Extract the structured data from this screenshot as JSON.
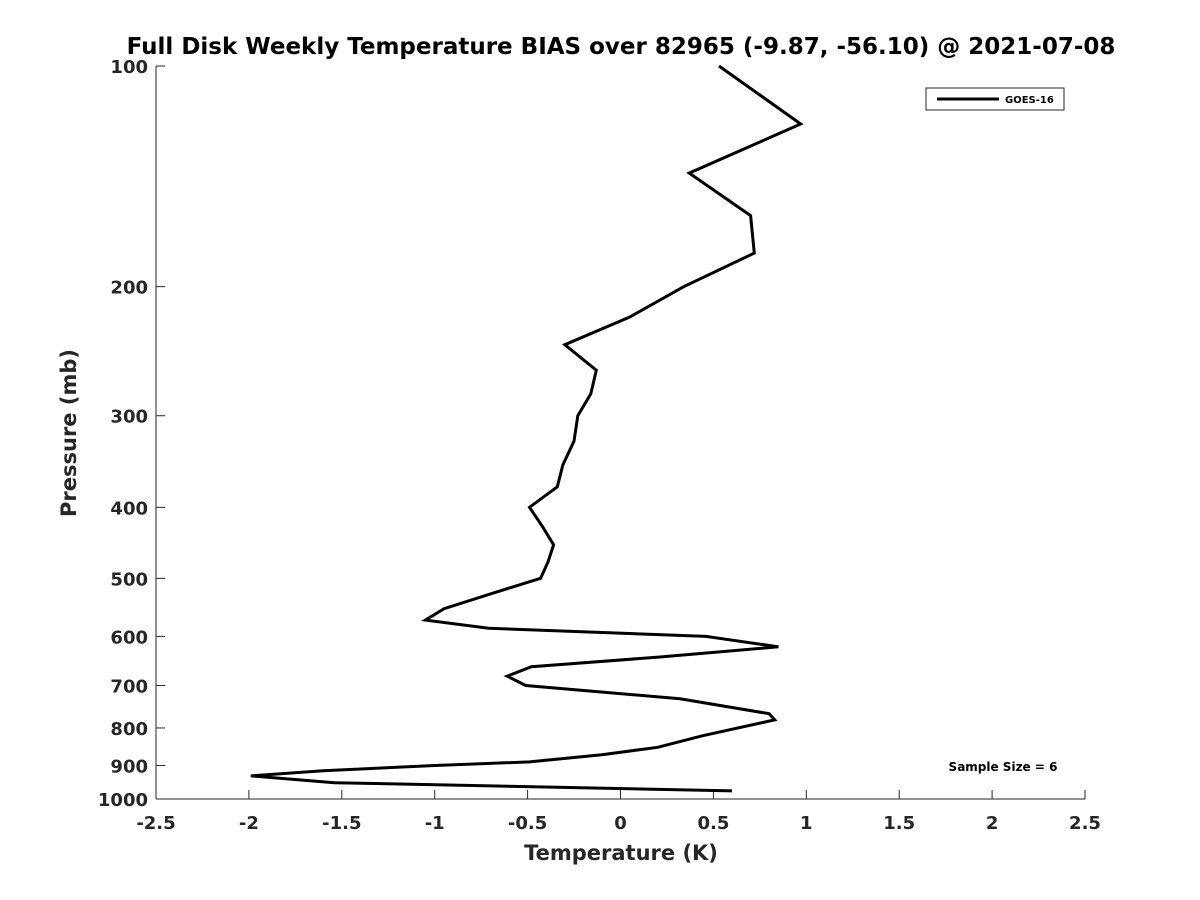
{
  "chart_data": {
    "type": "line",
    "title": "Full Disk Weekly Temperature BIAS over 82965 (-9.87, -56.10) @ 2021-07-08",
    "xlabel": "Temperature (K)",
    "ylabel": "Pressure (mb)",
    "xlim": [
      -2.5,
      2.5
    ],
    "ylim": [
      100,
      1000
    ],
    "y_scale": "log",
    "y_reversed": true,
    "grid": false,
    "legend_position": "top-right",
    "x_ticks": [
      -2.5,
      -2,
      -1.5,
      -1,
      -0.5,
      0,
      0.5,
      1,
      1.5,
      2,
      2.5
    ],
    "x_tick_labels": [
      "-2.5",
      "-2",
      "-1.5",
      "-1",
      "-0.5",
      "0",
      "0.5",
      "1",
      "1.5",
      "2",
      "2.5"
    ],
    "y_ticks": [
      100,
      200,
      300,
      400,
      500,
      600,
      700,
      800,
      900,
      1000
    ],
    "y_tick_labels": [
      "100",
      "200",
      "300",
      "400",
      "500",
      "600",
      "700",
      "800",
      "900",
      "1000"
    ],
    "series": [
      {
        "name": "GOES-16",
        "color": "#000000",
        "points": [
          {
            "x": 0.53,
            "y": 100
          },
          {
            "x": 0.97,
            "y": 120
          },
          {
            "x": 0.37,
            "y": 140
          },
          {
            "x": 0.7,
            "y": 160
          },
          {
            "x": 0.72,
            "y": 180
          },
          {
            "x": 0.34,
            "y": 200
          },
          {
            "x": 0.05,
            "y": 220
          },
          {
            "x": -0.3,
            "y": 240
          },
          {
            "x": -0.13,
            "y": 260
          },
          {
            "x": -0.16,
            "y": 280
          },
          {
            "x": -0.23,
            "y": 300
          },
          {
            "x": -0.25,
            "y": 325
          },
          {
            "x": -0.31,
            "y": 350
          },
          {
            "x": -0.34,
            "y": 375
          },
          {
            "x": -0.49,
            "y": 400
          },
          {
            "x": -0.42,
            "y": 425
          },
          {
            "x": -0.36,
            "y": 450
          },
          {
            "x": -0.39,
            "y": 475
          },
          {
            "x": -0.43,
            "y": 500
          },
          {
            "x": -0.7,
            "y": 525
          },
          {
            "x": -0.95,
            "y": 550
          },
          {
            "x": -1.05,
            "y": 570
          },
          {
            "x": -0.71,
            "y": 585
          },
          {
            "x": 0.46,
            "y": 600
          },
          {
            "x": 0.85,
            "y": 620
          },
          {
            "x": 0.22,
            "y": 640
          },
          {
            "x": -0.48,
            "y": 660
          },
          {
            "x": -0.61,
            "y": 680
          },
          {
            "x": -0.51,
            "y": 700
          },
          {
            "x": 0.32,
            "y": 730
          },
          {
            "x": 0.8,
            "y": 765
          },
          {
            "x": 0.83,
            "y": 780
          },
          {
            "x": 0.44,
            "y": 820
          },
          {
            "x": 0.2,
            "y": 850
          },
          {
            "x": -0.1,
            "y": 870
          },
          {
            "x": -0.49,
            "y": 890
          },
          {
            "x": -1.0,
            "y": 900
          },
          {
            "x": -1.6,
            "y": 915
          },
          {
            "x": -1.99,
            "y": 930
          },
          {
            "x": -1.54,
            "y": 950
          },
          {
            "x": 0.6,
            "y": 975
          }
        ]
      }
    ],
    "annotations": [
      "Sample Size = 6"
    ]
  }
}
